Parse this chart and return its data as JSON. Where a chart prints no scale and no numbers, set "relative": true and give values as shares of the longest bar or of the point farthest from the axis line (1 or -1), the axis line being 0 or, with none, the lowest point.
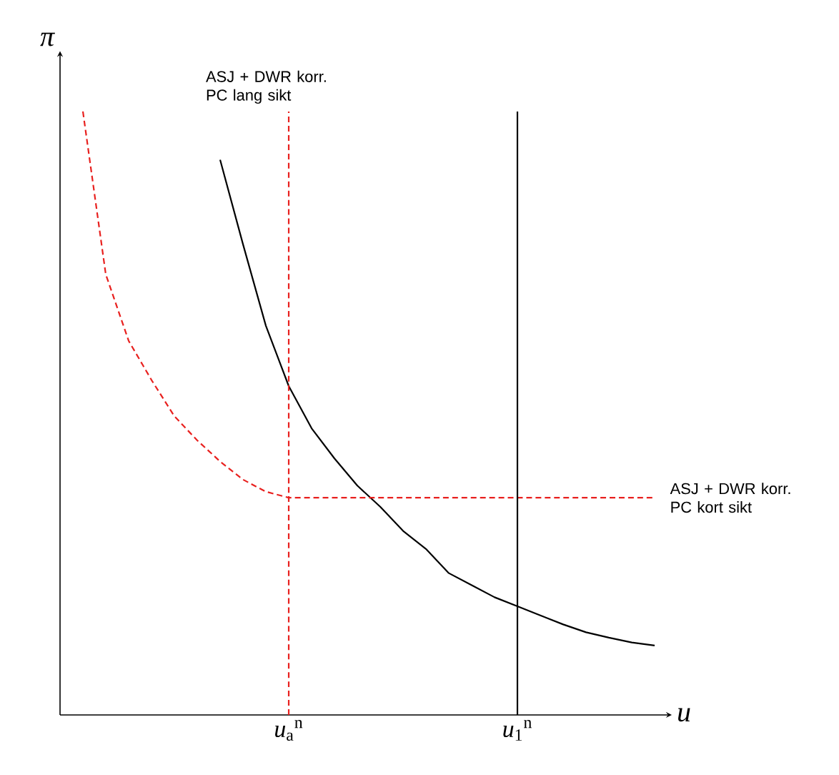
{
  "chart_data": {
    "type": "line",
    "relative": true,
    "xlabel": "*u*",
    "ylabel": "*π*",
    "categories": [
      null,
      null,
      null,
      null,
      null,
      null,
      null,
      null,
      null,
      null,
      "*u*$_{a}$$^{n}$",
      null,
      null,
      null,
      null,
      null,
      null,
      null,
      null,
      null,
      "*u*$_{1}$$^{n}$",
      null,
      null,
      null,
      null,
      null,
      null
    ],
    "tick_labels": "x",
    "marker": "none",
    "series": [
      {
        "color": "#000000",
        "line_style": "solid",
        "values": [
          null,
          null,
          null,
          null,
          null,
          null,
          null,
          0.92,
          0.78,
          0.645,
          0.545,
          0.475,
          0.425,
          0.38,
          0.345,
          0.305,
          0.275,
          0.235,
          0.215,
          0.195,
          0.18,
          0.165,
          0.15,
          0.137,
          0.128,
          0.12,
          0.115
        ]
      },
      {
        "name": "ASJ + DWR korr. PC kort sikt",
        "color": "#e8201e",
        "line_style": "dashed",
        "values": [
          null,
          1.0,
          0.73,
          0.62,
          0.555,
          0.495,
          0.455,
          0.42,
          0.39,
          0.37,
          0.36,
          0.36,
          0.36,
          0.36,
          0.36,
          0.36,
          0.36,
          0.36,
          0.36,
          0.36,
          0.36,
          0.36,
          0.36,
          0.36,
          0.36,
          0.36,
          0.36
        ]
      }
    ],
    "ref_lines": [
      {
        "axis": "x",
        "value": "*u*$_{a}$$^{n}$",
        "label": "ASJ + DWR korr. PC lang sikt",
        "color": "#e8201e",
        "line_style": "dashed"
      },
      {
        "axis": "x",
        "value": "*u*$_{1}$$^{n}$",
        "color": "#000000",
        "line_style": "solid"
      }
    ]
  }
}
